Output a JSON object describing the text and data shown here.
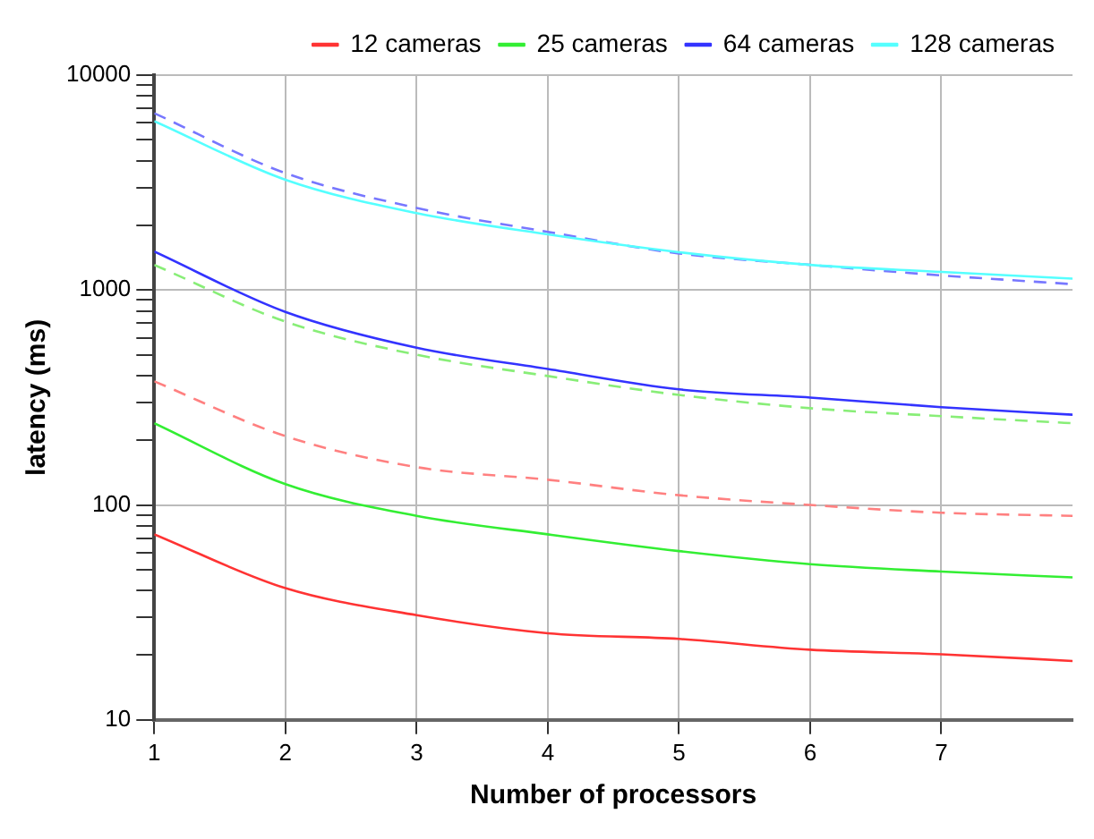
{
  "chart_data": {
    "type": "line",
    "xlabel": "Number of processors",
    "ylabel": "latency (ms)",
    "x": [
      1,
      2,
      3,
      4,
      5,
      6,
      7,
      8
    ],
    "xlim": [
      1,
      8
    ],
    "xticks": [
      1,
      2,
      3,
      4,
      5,
      6,
      7
    ],
    "ylim": [
      10,
      10000
    ],
    "log": "y",
    "yticks": [
      10,
      {
        "value": 20,
        "label": null
      },
      {
        "value": 30,
        "label": null
      },
      {
        "value": 40,
        "label": null
      },
      {
        "value": 50,
        "label": null
      },
      {
        "value": 60,
        "label": null
      },
      {
        "value": 70,
        "label": null
      },
      {
        "value": 80,
        "label": null
      },
      {
        "value": 90,
        "label": null
      },
      100,
      {
        "value": 200,
        "label": null
      },
      {
        "value": 300,
        "label": null
      },
      {
        "value": 400,
        "label": null
      },
      {
        "value": 500,
        "label": null
      },
      {
        "value": 600,
        "label": null
      },
      {
        "value": 700,
        "label": null
      },
      {
        "value": 800,
        "label": null
      },
      {
        "value": 900,
        "label": null
      },
      1000,
      {
        "value": 2000,
        "label": null
      },
      {
        "value": 3000,
        "label": null
      },
      {
        "value": 4000,
        "label": null
      },
      {
        "value": 5000,
        "label": null
      },
      {
        "value": 6000,
        "label": null
      },
      {
        "value": 7000,
        "label": null
      },
      {
        "value": 8000,
        "label": null
      },
      {
        "value": 9000,
        "label": null
      },
      10000
    ],
    "grid": true,
    "legend": "top right",
    "marker": "none",
    "series": [
      {
        "name": "12 cameras",
        "color": "#ff3333",
        "line_style": "solid",
        "values": [
          73,
          41,
          30.7,
          25.3,
          23.8,
          21.2,
          20.2,
          18.8
        ]
      },
      {
        "name": "25 cameras",
        "color": "#33ee33",
        "line_style": "solid",
        "values": [
          240,
          125,
          89,
          73,
          61,
          53,
          49,
          46
        ]
      },
      {
        "name": "64 cameras",
        "color": "#3333ff",
        "line_style": "solid",
        "values": [
          1510,
          791,
          539,
          429,
          345,
          316,
          285,
          263
        ]
      },
      {
        "name": "128 cameras",
        "color": "#55ffff",
        "line_style": "solid",
        "values": [
          6110,
          3260,
          2280,
          1815,
          1500,
          1310,
          1215,
          1130
        ]
      },
      {
        "color": "#ff8080",
        "line_style": "dashed",
        "values": [
          376,
          209,
          150,
          131,
          111,
          100,
          92,
          89
        ]
      },
      {
        "color": "#88ee77",
        "line_style": "dashed",
        "values": [
          1310,
          713,
          500,
          398,
          325,
          282,
          259,
          240
        ]
      },
      {
        "color": "#7777ff",
        "line_style": "dashed",
        "values": [
          6650,
          3500,
          2410,
          1865,
          1480,
          1310,
          1170,
          1065
        ]
      }
    ]
  }
}
